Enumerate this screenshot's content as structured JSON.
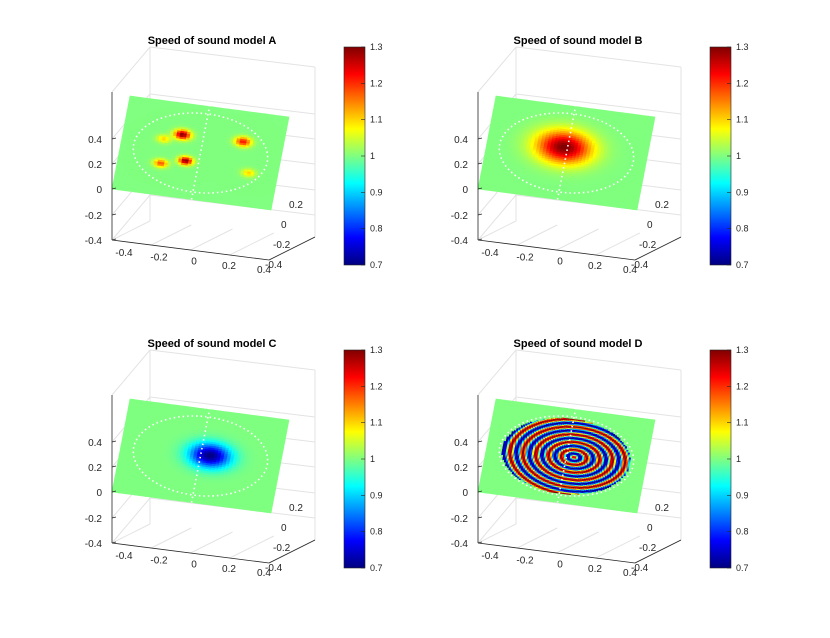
{
  "figure": {
    "background": "#ffffff",
    "colormap": "jet"
  },
  "chart_data": [
    {
      "type": "heatmap",
      "subtype": "3d-surface",
      "title": "Speed of sound model A",
      "x_ticks": [
        "-0.4",
        "-0.2",
        "0",
        "0.2",
        "0.4"
      ],
      "y_ticks": [
        "0.2",
        "0",
        "-0.2",
        "-0.4"
      ],
      "z_ticks": [
        "0.4",
        "0.2",
        "0",
        "-0.2",
        "-0.4"
      ],
      "colorbar_ticks": [
        "1.3",
        "1.2",
        "1.1",
        "1",
        "0.9",
        "0.8",
        "0.7"
      ],
      "clim": [
        0.7,
        1.3
      ],
      "background_value": 1.0,
      "grid": true,
      "features": [
        {
          "shape": "gaussian",
          "u": -0.13,
          "v": 0.17,
          "sigma": 0.035,
          "value": 1.3
        },
        {
          "shape": "gaussian",
          "u": -0.24,
          "v": 0.1,
          "sigma": 0.03,
          "value": 1.1
        },
        {
          "shape": "gaussian",
          "u": 0.25,
          "v": 0.18,
          "sigma": 0.035,
          "value": 1.22
        },
        {
          "shape": "gaussian",
          "u": -0.23,
          "v": -0.16,
          "sigma": 0.03,
          "value": 1.18
        },
        {
          "shape": "gaussian",
          "u": -0.08,
          "v": -0.1,
          "sigma": 0.03,
          "value": 1.3
        },
        {
          "shape": "gaussian",
          "u": 0.32,
          "v": -0.14,
          "sigma": 0.03,
          "value": 1.1
        }
      ]
    },
    {
      "type": "heatmap",
      "subtype": "3d-surface",
      "title": "Speed of sound model B",
      "x_ticks": [
        "-0.4",
        "-0.2",
        "0",
        "0.2",
        "0.4"
      ],
      "y_ticks": [
        "0.2",
        "0",
        "-0.2",
        "-0.4"
      ],
      "z_ticks": [
        "0.4",
        "0.2",
        "0",
        "-0.2",
        "-0.4"
      ],
      "colorbar_ticks": [
        "1.3",
        "1.2",
        "1.1",
        "1",
        "0.9",
        "0.8",
        "0.7"
      ],
      "clim": [
        0.7,
        1.3
      ],
      "background_value": 1.0,
      "grid": true,
      "features": [
        {
          "shape": "gaussian",
          "u": -0.02,
          "v": 0.06,
          "sigma": 0.12,
          "value": 1.3
        }
      ]
    },
    {
      "type": "heatmap",
      "subtype": "3d-surface",
      "title": "Speed of sound model C",
      "x_ticks": [
        "-0.4",
        "-0.2",
        "0",
        "0.2",
        "0.4"
      ],
      "y_ticks": [
        "0.2",
        "0",
        "-0.2",
        "-0.4"
      ],
      "z_ticks": [
        "0.4",
        "0.2",
        "0",
        "-0.2",
        "-0.4"
      ],
      "colorbar_ticks": [
        "1.3",
        "1.2",
        "1.1",
        "1",
        "0.9",
        "0.8",
        "0.7"
      ],
      "clim": [
        0.7,
        1.3
      ],
      "background_value": 1.0,
      "grid": true,
      "features": [
        {
          "shape": "gaussian",
          "u": 0.06,
          "v": 0.02,
          "sigma": 0.09,
          "value": 0.7
        }
      ]
    },
    {
      "type": "heatmap",
      "subtype": "3d-surface",
      "title": "Speed of sound model D",
      "x_ticks": [
        "-0.4",
        "-0.2",
        "0",
        "0.2",
        "0.4"
      ],
      "y_ticks": [
        "0.2",
        "0",
        "-0.2",
        "-0.4"
      ],
      "z_ticks": [
        "0.4",
        "0.2",
        "0",
        "-0.2",
        "-0.4"
      ],
      "colorbar_ticks": [
        "1.3",
        "1.2",
        "1.1",
        "1",
        "0.9",
        "0.8",
        "0.7"
      ],
      "clim": [
        0.7,
        1.3
      ],
      "background_value": 1.0,
      "grid": true,
      "features": [
        {
          "shape": "rings",
          "u": 0.05,
          "v": 0.0,
          "radius": 0.4,
          "ring_count": 5,
          "value_max": 1.3,
          "value_min": 0.7
        }
      ]
    }
  ]
}
